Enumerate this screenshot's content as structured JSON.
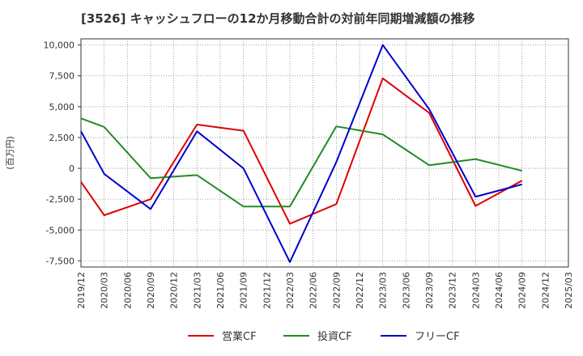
{
  "chart_data": {
    "type": "line",
    "title": "[3526]  キャッシュフローの12か月移動合計の対前年同期増減額の推移",
    "ylabel": "(百万円)",
    "xlabel": "",
    "ylim": [
      -8000,
      10500
    ],
    "yticks": [
      10000,
      7500,
      5000,
      2500,
      0,
      -2500,
      -5000,
      -7500
    ],
    "ytick_labels": [
      "10,000",
      "7,500",
      "5,000",
      "2,500",
      "0",
      "-2,500",
      "-5,000",
      "-7,500"
    ],
    "categories": [
      "2019/12",
      "2020/03",
      "2020/06",
      "2020/09",
      "2020/12",
      "2021/03",
      "2021/06",
      "2021/09",
      "2021/12",
      "2022/03",
      "2022/06",
      "2022/09",
      "2022/12",
      "2023/03",
      "2023/06",
      "2023/09",
      "2023/12",
      "2024/03",
      "2024/06",
      "2024/09",
      "2024/12",
      "2025/03"
    ],
    "grid": true,
    "legend_position": "bottom",
    "series": [
      {
        "name": "営業CF",
        "color": "#dd0000",
        "values": [
          -1100,
          -3800,
          null,
          -2500,
          null,
          3550,
          null,
          3050,
          null,
          -4500,
          null,
          -2900,
          null,
          7300,
          null,
          4500,
          null,
          -3050,
          null,
          -1000,
          null,
          null
        ]
      },
      {
        "name": "投資CF",
        "color": "#228b22",
        "values": [
          4050,
          3350,
          null,
          -800,
          null,
          -550,
          null,
          -3100,
          null,
          -3100,
          null,
          3400,
          null,
          2750,
          null,
          250,
          null,
          750,
          null,
          -200,
          null,
          null
        ]
      },
      {
        "name": "フリーCF",
        "color": "#0000cc",
        "values": [
          3000,
          -450,
          null,
          -3300,
          null,
          3000,
          null,
          0,
          null,
          -7600,
          null,
          500,
          null,
          10000,
          null,
          4800,
          null,
          -2300,
          null,
          -1300,
          null,
          null
        ]
      }
    ]
  }
}
